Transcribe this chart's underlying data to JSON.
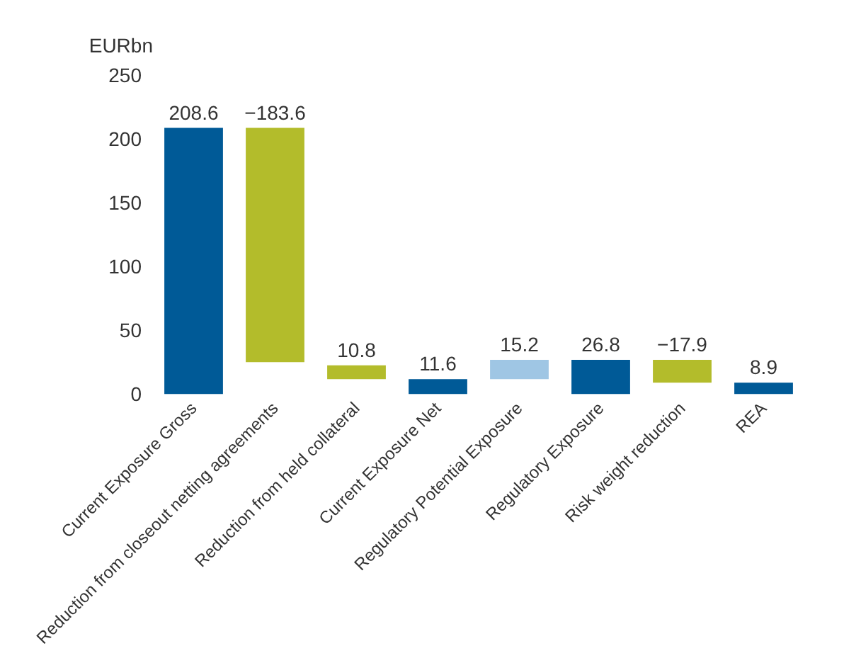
{
  "chart_data": {
    "type": "bar",
    "ylabel": "EURbn",
    "categories": [
      "Current Exposure Gross",
      "Reduction from closeout netting agreements",
      "Reduction from held collateral",
      "Current Exposure Net",
      "Regulatory Potential Exposure",
      "Regulatory Exposure",
      "Risk weight reduction",
      "REA"
    ],
    "values": [
      208.6,
      -183.6,
      -10.8,
      11.6,
      15.2,
      26.8,
      -17.9,
      8.9
    ],
    "base": [
      0,
      208.6,
      22.4,
      0,
      11.6,
      0,
      26.8,
      0
    ],
    "colors": [
      "#005a97",
      "#b3bc2b",
      "#b3bc2b",
      "#005a97",
      "#9fc6e4",
      "#005a97",
      "#b3bc2b",
      "#005a97"
    ],
    "value_labels": [
      "208.6",
      "−183.6",
      "10.8",
      "11.6",
      "15.2",
      "26.8",
      "−17.9",
      "8.9"
    ],
    "ylim": [
      0,
      250
    ],
    "yticks": [
      0,
      50,
      100,
      150,
      200,
      250
    ],
    "grid": false
  }
}
